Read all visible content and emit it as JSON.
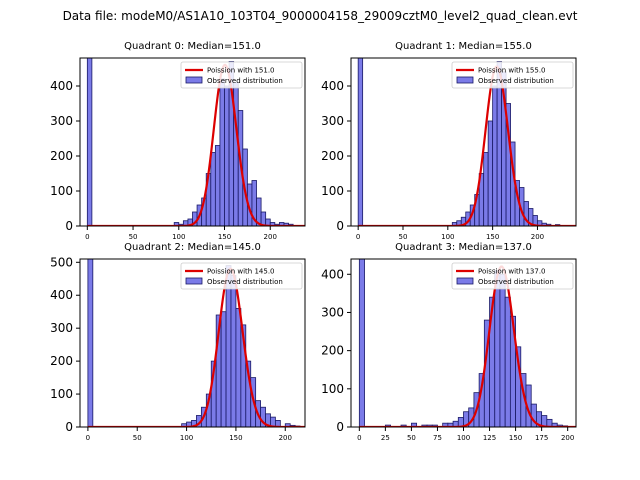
{
  "suptitle": "Data file: modeM0/AS1A10_103T04_9000004158_29009cztM0_level2_quad_clean.evt",
  "colors": {
    "bar_fill": "#7b7be8",
    "bar_edge": "#1a1a66",
    "line": "#dd0000",
    "axes": "#000000"
  },
  "chart_data": [
    {
      "type": "bar",
      "title": "Quadrant 0: Median=151.0",
      "xlim": [
        -8,
        238
      ],
      "ylim": [
        0,
        480
      ],
      "xticks": [
        0,
        50,
        100,
        150,
        200
      ],
      "yticks": [
        0,
        100,
        200,
        300,
        400
      ],
      "bin_width": 5,
      "bins": [
        [
          0,
          480
        ],
        [
          95,
          10
        ],
        [
          100,
          5
        ],
        [
          105,
          15
        ],
        [
          110,
          20
        ],
        [
          115,
          40
        ],
        [
          120,
          60
        ],
        [
          125,
          80
        ],
        [
          130,
          150
        ],
        [
          135,
          210
        ],
        [
          140,
          230
        ],
        [
          145,
          420
        ],
        [
          150,
          400
        ],
        [
          155,
          470
        ],
        [
          160,
          410
        ],
        [
          165,
          330
        ],
        [
          170,
          220
        ],
        [
          175,
          120
        ],
        [
          180,
          130
        ],
        [
          185,
          80
        ],
        [
          190,
          40
        ],
        [
          195,
          20
        ],
        [
          200,
          10
        ],
        [
          205,
          5
        ],
        [
          210,
          10
        ],
        [
          215,
          8
        ],
        [
          220,
          5
        ]
      ],
      "poisson_mean": 151.0,
      "poisson_amplitude": 460,
      "series": [
        {
          "name": "Poission with 151.0",
          "kind": "line"
        },
        {
          "name": "Observed distribution",
          "kind": "bar"
        }
      ]
    },
    {
      "type": "bar",
      "title": "Quadrant 1: Median=155.0",
      "xlim": [
        -8,
        243
      ],
      "ylim": [
        0,
        480
      ],
      "xticks": [
        0,
        50,
        100,
        150,
        200
      ],
      "yticks": [
        0,
        100,
        200,
        300,
        400
      ],
      "bin_width": 5,
      "bins": [
        [
          0,
          480
        ],
        [
          105,
          10
        ],
        [
          110,
          15
        ],
        [
          115,
          25
        ],
        [
          120,
          40
        ],
        [
          125,
          60
        ],
        [
          130,
          90
        ],
        [
          135,
          150
        ],
        [
          140,
          210
        ],
        [
          145,
          300
        ],
        [
          150,
          400
        ],
        [
          155,
          470
        ],
        [
          160,
          440
        ],
        [
          165,
          350
        ],
        [
          170,
          240
        ],
        [
          175,
          130
        ],
        [
          180,
          110
        ],
        [
          185,
          70
        ],
        [
          190,
          50
        ],
        [
          195,
          30
        ],
        [
          200,
          15
        ],
        [
          205,
          8
        ],
        [
          210,
          5
        ],
        [
          220,
          4
        ]
      ],
      "poisson_mean": 155.0,
      "poisson_amplitude": 455,
      "series": [
        {
          "name": "Poission with 155.0",
          "kind": "line"
        },
        {
          "name": "Observed distribution",
          "kind": "bar"
        }
      ]
    },
    {
      "type": "bar",
      "title": "Quadrant 2: Median=145.0",
      "xlim": [
        -8,
        220
      ],
      "ylim": [
        0,
        510
      ],
      "xticks": [
        0,
        50,
        100,
        150,
        200
      ],
      "yticks": [
        0,
        100,
        200,
        300,
        400,
        500
      ],
      "bin_width": 5,
      "bins": [
        [
          0,
          510
        ],
        [
          95,
          10
        ],
        [
          100,
          15
        ],
        [
          105,
          20
        ],
        [
          110,
          35
        ],
        [
          115,
          60
        ],
        [
          120,
          100
        ],
        [
          125,
          200
        ],
        [
          130,
          340
        ],
        [
          135,
          350
        ],
        [
          140,
          490
        ],
        [
          145,
          460
        ],
        [
          150,
          360
        ],
        [
          155,
          310
        ],
        [
          160,
          200
        ],
        [
          165,
          150
        ],
        [
          170,
          80
        ],
        [
          175,
          60
        ],
        [
          180,
          40
        ],
        [
          185,
          30
        ],
        [
          190,
          20
        ],
        [
          200,
          10
        ],
        [
          205,
          5
        ],
        [
          210,
          3
        ]
      ],
      "poisson_mean": 145.0,
      "poisson_amplitude": 480,
      "series": [
        {
          "name": "Poission with 145.0",
          "kind": "line"
        },
        {
          "name": "Observed distribution",
          "kind": "bar"
        }
      ]
    },
    {
      "type": "bar",
      "title": "Quadrant 3: Median=137.0",
      "xlim": [
        -8,
        208
      ],
      "ylim": [
        0,
        440
      ],
      "xticks": [
        0,
        25,
        50,
        75,
        100,
        125,
        150,
        175,
        200
      ],
      "yticks": [
        0,
        100,
        200,
        300,
        400
      ],
      "bin_width": 5,
      "bins": [
        [
          0,
          440
        ],
        [
          25,
          5
        ],
        [
          40,
          5
        ],
        [
          50,
          10
        ],
        [
          60,
          5
        ],
        [
          65,
          5
        ],
        [
          70,
          5
        ],
        [
          80,
          10
        ],
        [
          85,
          10
        ],
        [
          90,
          15
        ],
        [
          95,
          25
        ],
        [
          100,
          40
        ],
        [
          105,
          50
        ],
        [
          110,
          90
        ],
        [
          115,
          140
        ],
        [
          120,
          280
        ],
        [
          125,
          340
        ],
        [
          130,
          410
        ],
        [
          135,
          400
        ],
        [
          140,
          340
        ],
        [
          145,
          290
        ],
        [
          150,
          210
        ],
        [
          155,
          140
        ],
        [
          160,
          110
        ],
        [
          165,
          60
        ],
        [
          170,
          40
        ],
        [
          175,
          30
        ],
        [
          180,
          20
        ],
        [
          185,
          10
        ],
        [
          190,
          5
        ],
        [
          195,
          3
        ]
      ],
      "poisson_mean": 137.0,
      "poisson_amplitude": 420,
      "series": [
        {
          "name": "Poission with 137.0",
          "kind": "line"
        },
        {
          "name": "Observed distribution",
          "kind": "bar"
        }
      ]
    }
  ]
}
